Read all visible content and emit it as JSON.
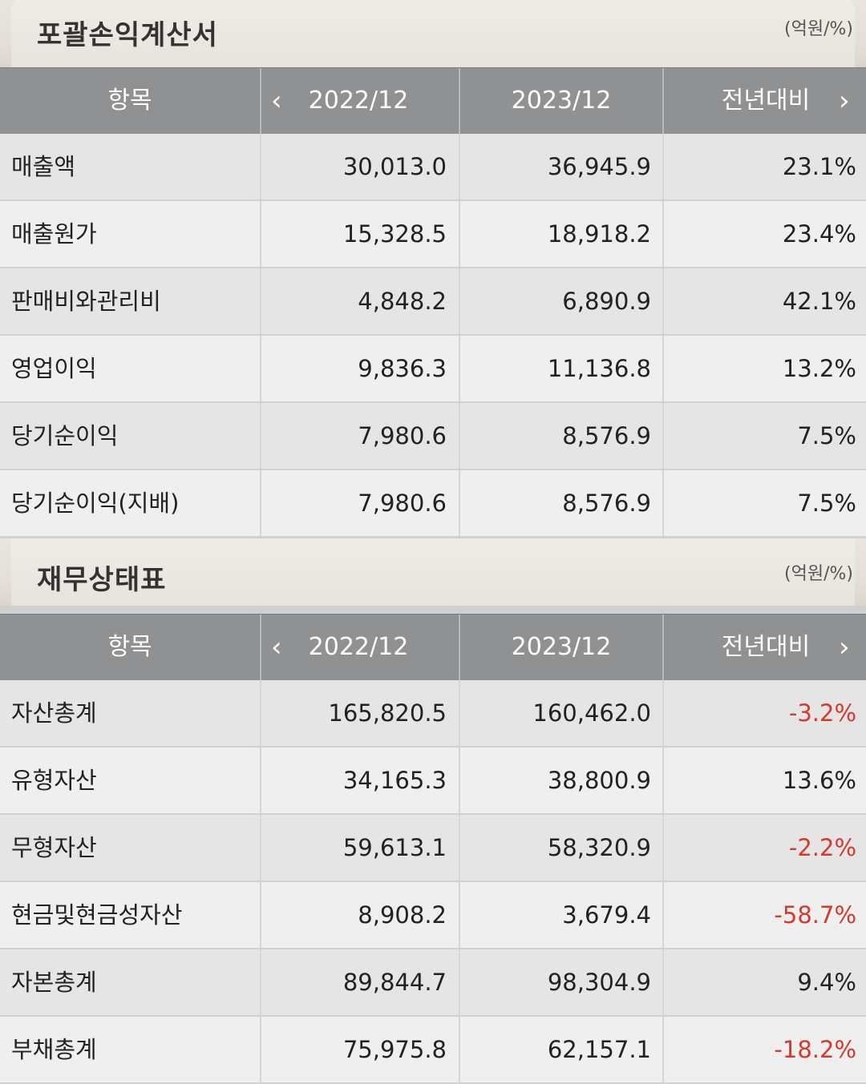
{
  "income": {
    "title": "포괄손익계산서",
    "unit": "(억원/%)",
    "headers": {
      "item": "항목",
      "p1": "2022/12",
      "p2": "2023/12",
      "change": "전년대비"
    },
    "nav": {
      "prev": "‹",
      "next": "›"
    },
    "rows": [
      {
        "label": "매출액",
        "v1": "30,013.0",
        "v2": "36,945.9",
        "change": "23.1%"
      },
      {
        "label": "매출원가",
        "v1": "15,328.5",
        "v2": "18,918.2",
        "change": "23.4%"
      },
      {
        "label": "판매비와관리비",
        "v1": "4,848.2",
        "v2": "6,890.9",
        "change": "42.1%"
      },
      {
        "label": "영업이익",
        "v1": "9,836.3",
        "v2": "11,136.8",
        "change": "13.2%"
      },
      {
        "label": "당기순이익",
        "v1": "7,980.6",
        "v2": "8,576.9",
        "change": "7.5%"
      },
      {
        "label": "당기순이익(지배)",
        "v1": "7,980.6",
        "v2": "8,576.9",
        "change": "7.5%"
      }
    ]
  },
  "balance": {
    "title": "재무상태표",
    "unit": "(억원/%)",
    "headers": {
      "item": "항목",
      "p1": "2022/12",
      "p2": "2023/12",
      "change": "전년대비"
    },
    "nav": {
      "prev": "‹",
      "next": "›"
    },
    "rows": [
      {
        "label": "자산총계",
        "v1": "165,820.5",
        "v2": "160,462.0",
        "change": "-3.2%"
      },
      {
        "label": "유형자산",
        "v1": "34,165.3",
        "v2": "38,800.9",
        "change": "13.6%"
      },
      {
        "label": "무형자산",
        "v1": "59,613.1",
        "v2": "58,320.9",
        "change": "-2.2%"
      },
      {
        "label": "현금및현금성자산",
        "v1": "8,908.2",
        "v2": "3,679.4",
        "change": "-58.7%"
      },
      {
        "label": "자본총계",
        "v1": "89,844.7",
        "v2": "98,304.9",
        "change": "9.4%"
      },
      {
        "label": "부채총계",
        "v1": "75,975.8",
        "v2": "62,157.1",
        "change": "-18.2%"
      }
    ]
  },
  "colors": {
    "negative": "#d33a2c",
    "header_bg": "#8f9193"
  }
}
